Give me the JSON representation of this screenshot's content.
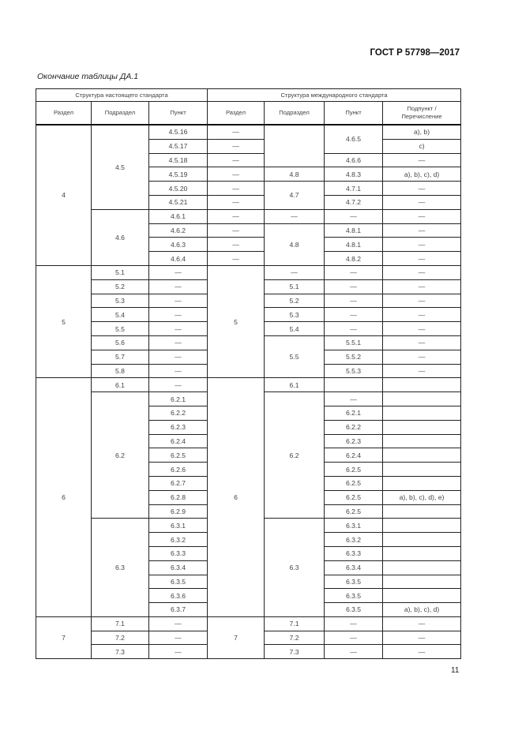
{
  "header": {
    "doc_code": "ГОСТ Р 57798—2017"
  },
  "caption": "Окончание таблицы ДА.1",
  "page_number": "11",
  "table": {
    "group_headers": [
      "Структура настоящего стандарта",
      "Структура международного стандарта"
    ],
    "columns": [
      "Раздел",
      "Подраздел",
      "Пункт",
      "Раздел",
      "Подраздел",
      "Пункт",
      "Подпункт / Перечисление"
    ],
    "groups": [
      {
        "rows": 10,
        "columns": [
          [
            {
              "text": "4",
              "span": 10
            }
          ],
          [
            {
              "text": "4.5",
              "span": 6
            },
            {
              "text": "4.6",
              "span": 4
            }
          ],
          [
            {
              "text": "4.5.16"
            },
            {
              "text": "4.5.17"
            },
            {
              "text": "4.5.18"
            },
            {
              "text": "4.5.19"
            },
            {
              "text": "4.5.20"
            },
            {
              "text": "4.5.21"
            },
            {
              "text": "4.6.1"
            },
            {
              "text": "4.6.2"
            },
            {
              "text": "4.6.3"
            },
            {
              "text": "4.6.4"
            }
          ],
          [
            {
              "text": "—"
            },
            {
              "text": "—"
            },
            {
              "text": "—"
            },
            {
              "text": "—"
            },
            {
              "text": "—"
            },
            {
              "text": "—"
            },
            {
              "text": "—"
            },
            {
              "text": "—"
            },
            {
              "text": "—"
            },
            {
              "text": "—"
            }
          ],
          [
            {
              "text": "",
              "span": 3
            },
            {
              "text": "4.8"
            },
            {
              "text": "4.7",
              "span": 2
            },
            {
              "text": "—"
            },
            {
              "text": "4.8",
              "span": 3
            }
          ],
          [
            {
              "text": "4.6.5",
              "span": 2
            },
            {
              "text": "4.6.6"
            },
            {
              "text": "4.8.3"
            },
            {
              "text": "4.7.1"
            },
            {
              "text": "4.7.2"
            },
            {
              "text": "—"
            },
            {
              "text": "4.8.1"
            },
            {
              "text": "4.8.1"
            },
            {
              "text": "4.8.2"
            }
          ],
          [
            {
              "text": "a), b)"
            },
            {
              "text": "c)"
            },
            {
              "text": "—"
            },
            {
              "text": "a), b), c), d)"
            },
            {
              "text": "—"
            },
            {
              "text": "—"
            },
            {
              "text": "—"
            },
            {
              "text": "—"
            },
            {
              "text": "—"
            },
            {
              "text": "—"
            }
          ]
        ]
      },
      {
        "rows": 8,
        "columns": [
          [
            {
              "text": "5",
              "span": 8
            }
          ],
          [
            {
              "text": "5.1"
            },
            {
              "text": "5.2"
            },
            {
              "text": "5.3"
            },
            {
              "text": "5.4"
            },
            {
              "text": "5.5"
            },
            {
              "text": "5.6"
            },
            {
              "text": "5.7"
            },
            {
              "text": "5.8"
            }
          ],
          [
            {
              "text": "—"
            },
            {
              "text": "—"
            },
            {
              "text": "—"
            },
            {
              "text": "—"
            },
            {
              "text": "—"
            },
            {
              "text": "—"
            },
            {
              "text": "—"
            },
            {
              "text": "—"
            }
          ],
          [
            {
              "text": "5",
              "span": 8
            }
          ],
          [
            {
              "text": "—"
            },
            {
              "text": "5.1"
            },
            {
              "text": "5.2"
            },
            {
              "text": "5.3"
            },
            {
              "text": "5.4"
            },
            {
              "text": "5.5",
              "span": 3
            }
          ],
          [
            {
              "text": "—"
            },
            {
              "text": "—"
            },
            {
              "text": "—"
            },
            {
              "text": "—"
            },
            {
              "text": "—"
            },
            {
              "text": "5.5.1"
            },
            {
              "text": "5.5.2"
            },
            {
              "text": "5.5.3"
            }
          ],
          [
            {
              "text": "—"
            },
            {
              "text": "—"
            },
            {
              "text": "—"
            },
            {
              "text": "—"
            },
            {
              "text": "—"
            },
            {
              "text": "—"
            },
            {
              "text": "—"
            },
            {
              "text": "—"
            }
          ]
        ]
      },
      {
        "rows": 17,
        "columns": [
          [
            {
              "text": "6",
              "span": 17
            }
          ],
          [
            {
              "text": "6.1"
            },
            {
              "text": "6.2",
              "span": 9
            },
            {
              "text": "6.3",
              "span": 7
            }
          ],
          [
            {
              "text": "—"
            },
            {
              "text": "6.2.1"
            },
            {
              "text": "6.2.2"
            },
            {
              "text": "6.2.3"
            },
            {
              "text": "6.2.4"
            },
            {
              "text": "6.2.5"
            },
            {
              "text": "6.2.6"
            },
            {
              "text": "6.2.7"
            },
            {
              "text": "6.2.8"
            },
            {
              "text": "6.2.9"
            },
            {
              "text": "6.3.1"
            },
            {
              "text": "6.3.2"
            },
            {
              "text": "6.3.3"
            },
            {
              "text": "6.3.4"
            },
            {
              "text": "6.3.5"
            },
            {
              "text": "6.3.6"
            },
            {
              "text": "6.3.7"
            }
          ],
          [
            {
              "text": "6",
              "span": 17
            }
          ],
          [
            {
              "text": "6.1"
            },
            {
              "text": "6.2",
              "span": 9
            },
            {
              "text": "6.3",
              "span": 7
            }
          ],
          [
            {
              "text": ""
            },
            {
              "text": "—"
            },
            {
              "text": "6.2.1"
            },
            {
              "text": "6.2.2"
            },
            {
              "text": "6.2.3"
            },
            {
              "text": "6.2.4"
            },
            {
              "text": "6.2.5"
            },
            {
              "text": "6.2.5"
            },
            {
              "text": "6.2.5"
            },
            {
              "text": "6.2.5"
            },
            {
              "text": "6.3.1"
            },
            {
              "text": "6.3.2"
            },
            {
              "text": "6.3.3"
            },
            {
              "text": "6.3.4"
            },
            {
              "text": "6.3.5"
            },
            {
              "text": "6.3.5"
            },
            {
              "text": "6.3.5"
            }
          ],
          [
            {
              "text": ""
            },
            {
              "text": ""
            },
            {
              "text": ""
            },
            {
              "text": ""
            },
            {
              "text": ""
            },
            {
              "text": ""
            },
            {
              "text": ""
            },
            {
              "text": ""
            },
            {
              "text": "a), b), c), d), e)"
            },
            {
              "text": ""
            },
            {
              "text": ""
            },
            {
              "text": ""
            },
            {
              "text": ""
            },
            {
              "text": ""
            },
            {
              "text": ""
            },
            {
              "text": ""
            },
            {
              "text": "a), b), c), d)"
            }
          ]
        ]
      },
      {
        "rows": 3,
        "columns": [
          [
            {
              "text": "7",
              "span": 3
            }
          ],
          [
            {
              "text": "7.1"
            },
            {
              "text": "7.2"
            },
            {
              "text": "7.3"
            }
          ],
          [
            {
              "text": "—"
            },
            {
              "text": "—"
            },
            {
              "text": "—"
            }
          ],
          [
            {
              "text": "7",
              "span": 3
            }
          ],
          [
            {
              "text": "7.1"
            },
            {
              "text": "7.2"
            },
            {
              "text": "7.3"
            }
          ],
          [
            {
              "text": "—"
            },
            {
              "text": "—"
            },
            {
              "text": "—"
            }
          ],
          [
            {
              "text": "—"
            },
            {
              "text": "—"
            },
            {
              "text": "—"
            }
          ]
        ]
      }
    ]
  }
}
